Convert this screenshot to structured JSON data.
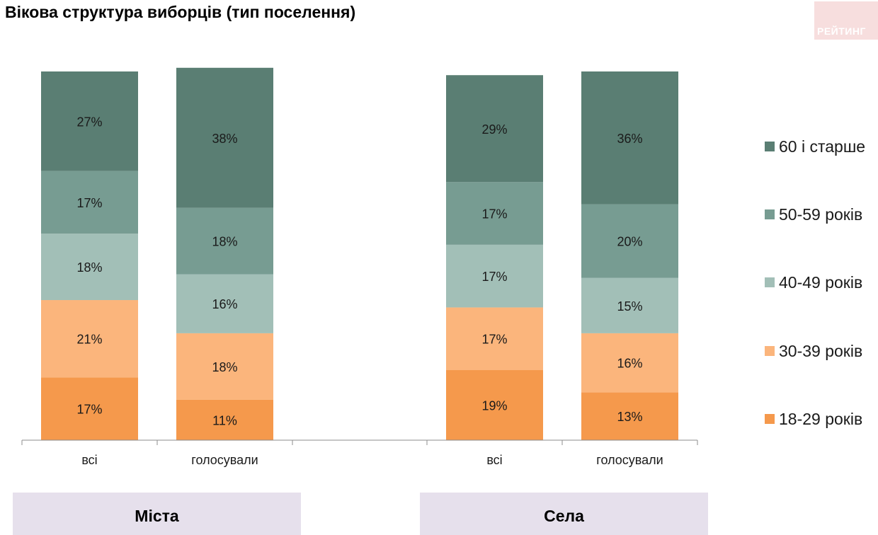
{
  "header": {
    "title": "Вікова структура виборців (тип поселення)",
    "logo_text": "РЕЙТИНГ"
  },
  "groups": [
    "Міста",
    "Села"
  ],
  "chart_data": {
    "type": "bar",
    "stacked": true,
    "title": "Вікова структура виборців (тип поселення)",
    "categories": [
      "всі",
      "голосували",
      "всі",
      "голосували"
    ],
    "category_groups": [
      "Міста",
      "Міста",
      "Села",
      "Села"
    ],
    "unit": "%",
    "ylim": [
      0,
      100
    ],
    "grid": false,
    "legend_position": "right",
    "series": [
      {
        "name": "18-29 років",
        "color": "#f5994c",
        "values": [
          17,
          11,
          19,
          13
        ]
      },
      {
        "name": "30-39 років",
        "color": "#fbb57c",
        "values": [
          21,
          18,
          17,
          16
        ]
      },
      {
        "name": "40-49 років",
        "color": "#a2bfb7",
        "values": [
          18,
          16,
          17,
          15
        ]
      },
      {
        "name": "50-59 років",
        "color": "#779c92",
        "values": [
          17,
          18,
          17,
          20
        ]
      },
      {
        "name": "60 і старше",
        "color": "#5a7e73",
        "values": [
          27,
          38,
          29,
          36
        ]
      }
    ]
  }
}
